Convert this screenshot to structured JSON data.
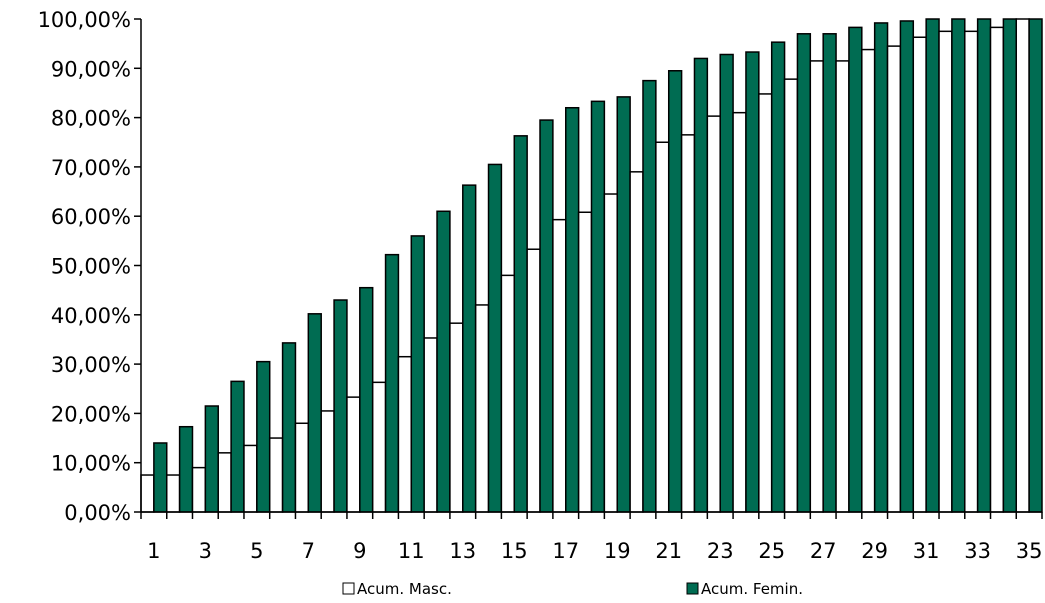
{
  "chart_data": {
    "type": "bar",
    "categories": [
      "1",
      "2",
      "3",
      "4",
      "5",
      "6",
      "7",
      "8",
      "9",
      "10",
      "11",
      "12",
      "13",
      "14",
      "15",
      "16",
      "17",
      "18",
      "19",
      "20",
      "21",
      "22",
      "23",
      "24",
      "25",
      "26",
      "27",
      "28",
      "29",
      "30",
      "31",
      "32",
      "33",
      "34",
      "35"
    ],
    "x_tick_labels": [
      "1",
      "3",
      "5",
      "7",
      "9",
      "11",
      "13",
      "15",
      "17",
      "19",
      "21",
      "23",
      "25",
      "27",
      "29",
      "31",
      "33",
      "35"
    ],
    "y_tick_labels": [
      "0,00%",
      "10,00%",
      "20,00%",
      "30,00%",
      "40,00%",
      "50,00%",
      "60,00%",
      "70,00%",
      "80,00%",
      "90,00%",
      "100,00%"
    ],
    "ylim": [
      0,
      100
    ],
    "y_unit": "%",
    "legend_position": "bottom",
    "series": [
      {
        "name": "Acum. Masc.",
        "color": "#ffffff",
        "values": [
          7.5,
          7.5,
          9.0,
          12.0,
          13.5,
          15.0,
          18.0,
          20.5,
          23.3,
          26.3,
          31.5,
          35.3,
          38.3,
          42.0,
          48.0,
          53.3,
          59.3,
          60.8,
          64.5,
          69.0,
          75.0,
          76.5,
          80.3,
          81.0,
          84.8,
          87.8,
          91.5,
          91.5,
          93.8,
          94.5,
          96.3,
          97.5,
          97.5,
          98.3,
          100.0
        ]
      },
      {
        "name": "Acum. Femin.",
        "color": "#006c52",
        "values": [
          14.0,
          17.3,
          21.5,
          26.5,
          30.5,
          34.3,
          40.2,
          43.0,
          45.5,
          52.2,
          56.0,
          61.0,
          66.3,
          70.5,
          76.3,
          79.5,
          82.0,
          83.3,
          84.2,
          87.5,
          89.5,
          92.0,
          92.8,
          93.3,
          95.3,
          97.0,
          97.0,
          98.3,
          99.2,
          99.6,
          100.0,
          100.0,
          100.0,
          100.0,
          100.0
        ]
      }
    ]
  }
}
